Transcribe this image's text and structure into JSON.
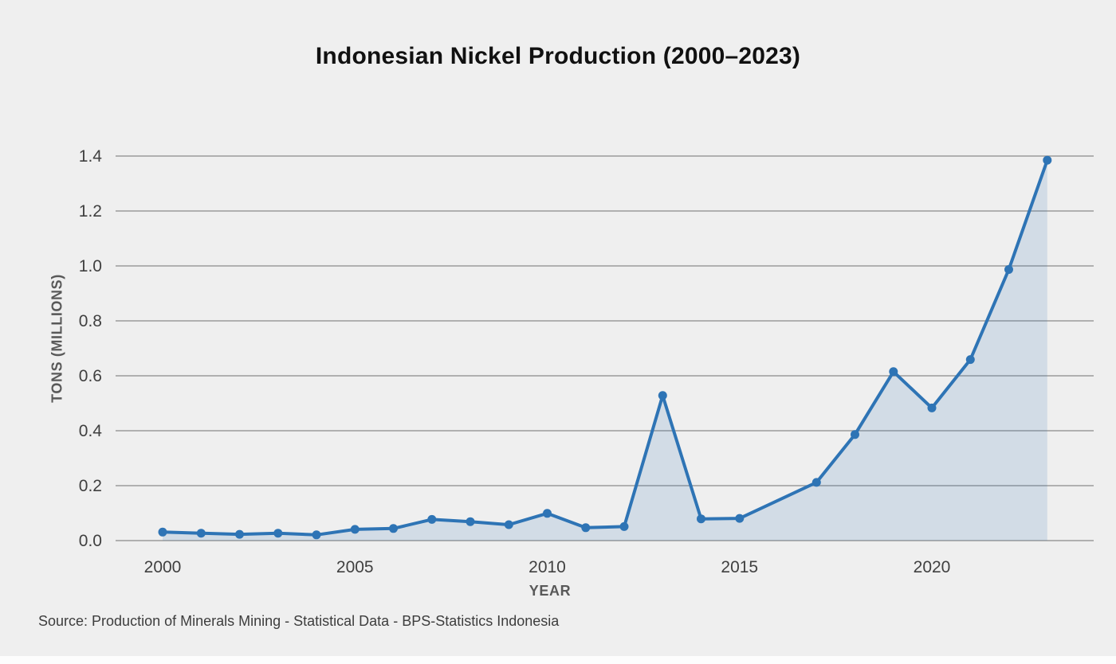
{
  "chart_data": {
    "type": "area",
    "title": "Indonesian Nickel Production (2000–2023)",
    "xlabel": "YEAR",
    "ylabel": "TONS (MILLIONS)",
    "source": "Source: Production of Minerals Mining - Statistical Data - BPS-Statistics Indonesia",
    "x": [
      2000,
      2001,
      2002,
      2003,
      2004,
      2005,
      2006,
      2007,
      2008,
      2009,
      2010,
      2011,
      2012,
      2013,
      2014,
      2015,
      2016,
      2017,
      2018,
      2019,
      2020,
      2021,
      2022,
      2023
    ],
    "values": [
      0.031,
      0.027,
      0.023,
      0.027,
      0.021,
      0.041,
      0.044,
      0.077,
      0.069,
      0.058,
      0.099,
      0.047,
      0.051,
      0.528,
      0.079,
      0.081,
      null,
      0.212,
      0.386,
      0.615,
      0.483,
      0.659,
      0.987,
      1.385
    ],
    "x_tick_labels": [
      "2000",
      "2005",
      "2010",
      "2015",
      "2020"
    ],
    "y_tick_labels": [
      "0.0",
      "0.2",
      "0.4",
      "0.6",
      "0.8",
      "1.0",
      "1.2",
      "1.4"
    ],
    "y_tick_step": 0.2,
    "ylim": [
      0,
      1.4
    ],
    "grid": "horizontal",
    "legend": "none",
    "marker": "circle",
    "colors": {
      "line": "#2e74b5",
      "fill": "rgba(46, 116, 181, 0.15)",
      "grid": "#9c9c9c",
      "tick_text": "#404040",
      "background": "#efefef"
    }
  }
}
